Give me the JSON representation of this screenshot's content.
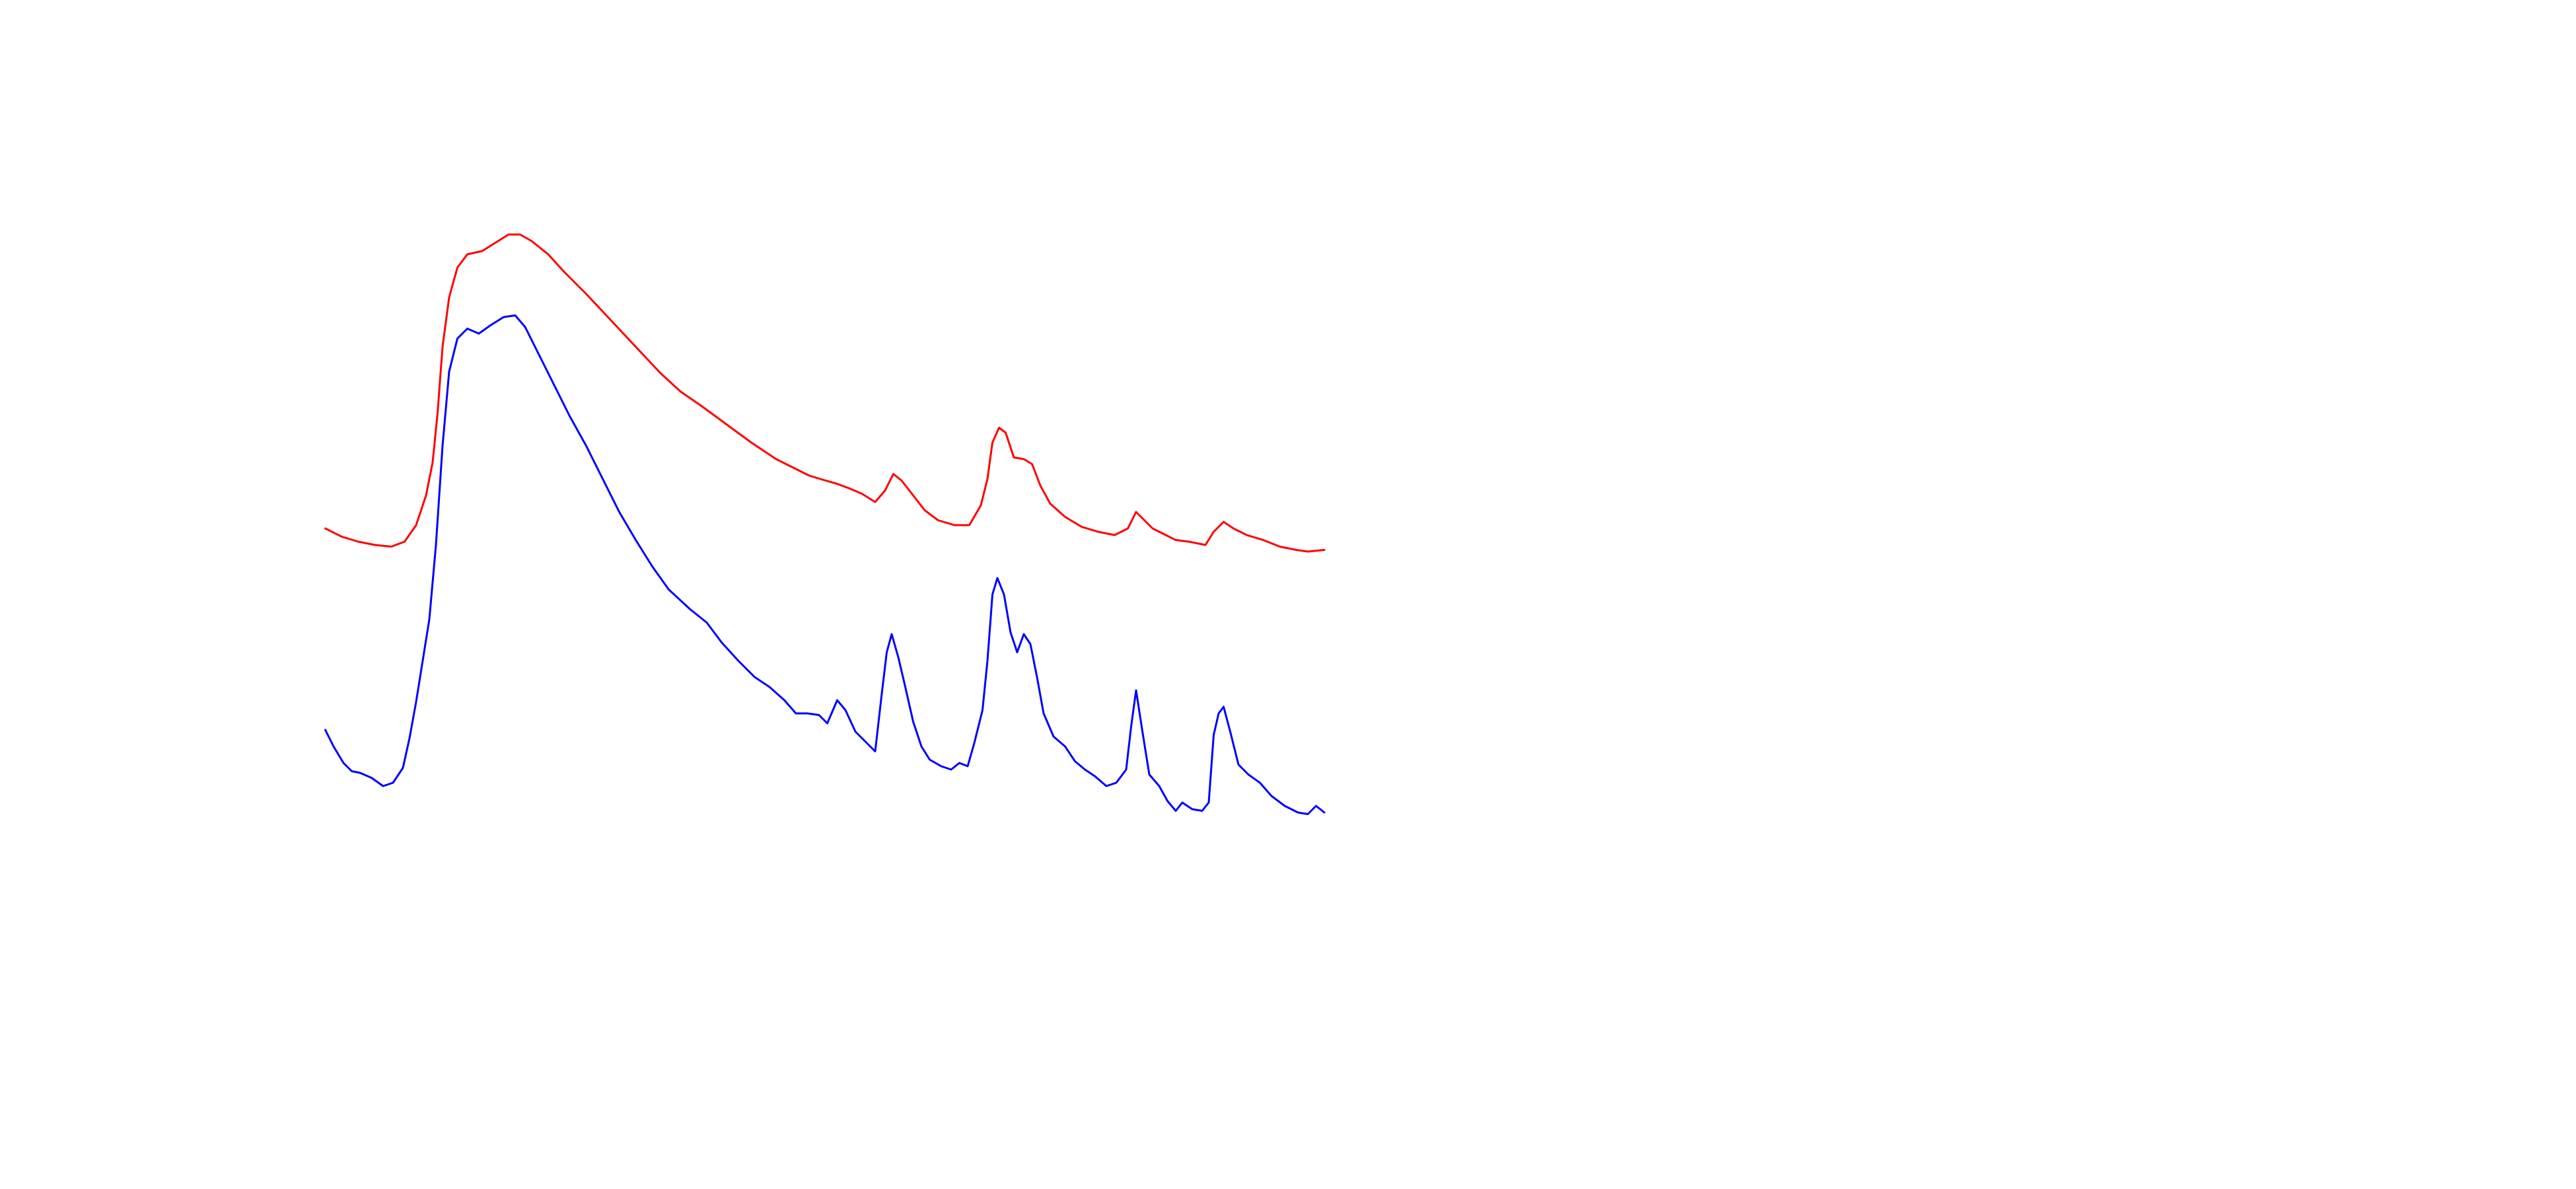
{
  "chart_data": {
    "type": "line",
    "xlim": [
      0,
      605
    ],
    "ylim": [
      0,
      380
    ],
    "series": [
      {
        "color": "#ff0000",
        "x": [
          0,
          10,
          20,
          30,
          40,
          48,
          55,
          61,
          65,
          68,
          71,
          75,
          80,
          86,
          95,
          103,
          111,
          118,
          125,
          135,
          145,
          158,
          173,
          188,
          203,
          215,
          228,
          243,
          258,
          273,
          283,
          293,
          303,
          310,
          318,
          325,
          333,
          339,
          344,
          349,
          356,
          363,
          371,
          381,
          390,
          397,
          401,
          404,
          408,
          412,
          417,
          423,
          428,
          433,
          439,
          448,
          458,
          468,
          478,
          486,
          491,
          495,
          501,
          509,
          515,
          523,
          533,
          538,
          544,
          550,
          558,
          568,
          578,
          588,
          595,
          605
        ],
        "values": [
          190,
          185,
          182,
          180,
          179,
          182,
          192,
          210,
          230,
          260,
          300,
          330,
          348,
          356,
          358,
          363,
          368,
          368,
          364,
          356,
          345,
          332,
          316,
          300,
          284,
          273,
          264,
          253,
          242,
          232,
          227,
          222,
          219,
          217,
          214,
          211,
          206,
          213,
          223,
          219,
          210,
          201,
          195,
          192,
          192,
          204,
          220,
          242,
          251,
          248,
          233,
          232,
          229,
          216,
          205,
          197,
          191,
          188,
          186,
          190,
          200,
          196,
          190,
          186,
          183,
          182,
          180,
          188,
          194,
          190,
          186,
          183,
          179,
          177,
          176,
          177
        ]
      },
      {
        "color": "#0000ff",
        "x": [
          0,
          5,
          11,
          16,
          21,
          28,
          35,
          41,
          47,
          51,
          55,
          59,
          63,
          67,
          71,
          75,
          80,
          86,
          93,
          100,
          108,
          115,
          121,
          128,
          138,
          148,
          158,
          168,
          178,
          188,
          198,
          208,
          221,
          231,
          240,
          250,
          260,
          269,
          278,
          285,
          292,
          299,
          304,
          310,
          315,
          321,
          329,
          333,
          337,
          340,
          343,
          347,
          351,
          356,
          361,
          366,
          373,
          379,
          384,
          389,
          393,
          398,
          401,
          404,
          407,
          411,
          415,
          419,
          423,
          427,
          431,
          435,
          441,
          448,
          454,
          460,
          466,
          473,
          479,
          485,
          488,
          491,
          495,
          499,
          505,
          510,
          515,
          519,
          525,
          531,
          535,
          538,
          541,
          544,
          548,
          553,
          559,
          566,
          573,
          581,
          589,
          595,
          600,
          605
        ],
        "values": [
          68,
          58,
          48,
          43,
          42,
          39,
          34,
          36,
          45,
          63,
          85,
          110,
          135,
          180,
          240,
          285,
          305,
          311,
          308,
          313,
          318,
          319,
          312,
          298,
          278,
          258,
          240,
          220,
          200,
          183,
          167,
          153,
          141,
          133,
          121,
          110,
          100,
          94,
          86,
          78,
          78,
          77,
          72,
          86,
          80,
          67,
          59,
          55,
          90,
          115,
          126,
          112,
          95,
          73,
          58,
          50,
          46,
          44,
          48,
          46,
          60,
          80,
          110,
          150,
          160,
          150,
          127,
          115,
          126,
          120,
          100,
          78,
          64,
          58,
          49,
          44,
          40,
          34,
          36,
          44,
          70,
          92,
          66,
          41,
          34,
          25,
          19,
          24,
          20,
          19,
          24,
          65,
          78,
          82,
          67,
          47,
          41,
          36,
          28,
          22,
          18,
          17,
          22,
          18
        ]
      }
    ]
  }
}
